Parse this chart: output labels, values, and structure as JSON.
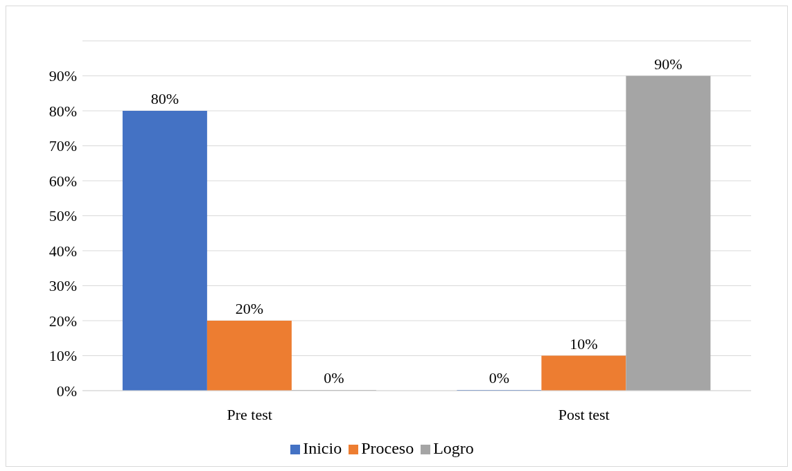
{
  "chart_data": {
    "type": "bar",
    "categories": [
      "Pre test",
      "Post test"
    ],
    "series": [
      {
        "name": "Inicio",
        "color": "#4472c4",
        "values": [
          80,
          0
        ],
        "value_labels": [
          "80%",
          "0%"
        ]
      },
      {
        "name": "Proceso",
        "color": "#ed7d31",
        "values": [
          20,
          10
        ],
        "value_labels": [
          "20%",
          "10%"
        ]
      },
      {
        "name": "Logro",
        "color": "#a5a5a5",
        "values": [
          0,
          90
        ],
        "value_labels": [
          "0%",
          "90%"
        ]
      }
    ],
    "ylim": [
      0,
      100
    ],
    "yticks": [
      {
        "value": 0,
        "label": "0%"
      },
      {
        "value": 10,
        "label": "10%"
      },
      {
        "value": 20,
        "label": "20%"
      },
      {
        "value": 30,
        "label": "30%"
      },
      {
        "value": 40,
        "label": "40%"
      },
      {
        "value": 50,
        "label": "50%"
      },
      {
        "value": 60,
        "label": "60%"
      },
      {
        "value": 70,
        "label": "70%"
      },
      {
        "value": 80,
        "label": "80%"
      },
      {
        "value": 90,
        "label": "90%"
      },
      {
        "value": 100,
        "label": null
      }
    ],
    "grid": "y",
    "legend": "bottom"
  }
}
